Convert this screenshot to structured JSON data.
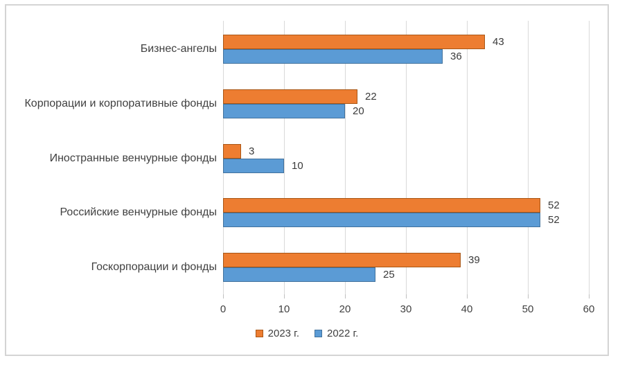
{
  "chart_data": {
    "type": "bar",
    "orientation": "horizontal",
    "title": "",
    "xlabel": "",
    "ylabel": "",
    "categories": [
      "Бизнес-ангелы",
      "Корпорации и корпоративные фонды",
      "Иностранные венчурные фонды",
      "Российские венчурные фонды",
      "Госкорпорации и фонды"
    ],
    "series": [
      {
        "name": "2023 г.",
        "color": "#ED7D31",
        "border_color": "#A85615",
        "values": [
          43,
          22,
          3,
          52,
          39
        ]
      },
      {
        "name": "2022 г.",
        "color": "#5B9BD5",
        "border_color": "#41719C",
        "values": [
          36,
          20,
          10,
          52,
          25
        ]
      }
    ],
    "x_ticks": [
      0,
      10,
      20,
      30,
      40,
      50,
      60
    ],
    "xlim": [
      0,
      60
    ],
    "grid": true,
    "data_labels": true,
    "legend_position": "bottom",
    "colors": {
      "gridline": "#d9d9d9",
      "tick": "#bfbfbf",
      "text": "#404040",
      "frame_border": "#d4d4d4",
      "background": "#ffffff"
    }
  }
}
